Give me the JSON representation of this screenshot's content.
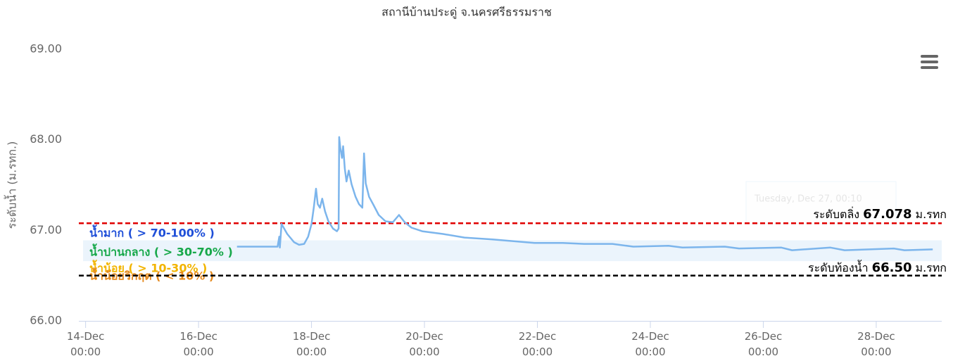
{
  "chart_data": {
    "type": "line",
    "title": "สถานีบ้านประดู่ จ.นครศรีธรรมราช",
    "y_axis_label": "ระดับน้ำ (ม.รทก.)",
    "color": "#7cb5ec",
    "x": [
      16.68,
      17.4,
      17.43,
      17.44,
      17.47,
      17.57,
      17.69,
      17.78,
      17.87,
      17.94,
      18.0,
      18.04,
      18.08,
      18.11,
      18.15,
      18.19,
      18.24,
      18.3,
      18.38,
      18.45,
      18.48,
      18.49,
      18.51,
      18.54,
      18.56,
      18.59,
      18.62,
      18.66,
      18.71,
      18.78,
      18.84,
      18.9,
      18.93,
      18.96,
      19.02,
      19.09,
      19.19,
      19.31,
      19.44,
      19.55,
      19.65,
      19.77,
      19.96,
      20.33,
      20.71,
      21.21,
      21.58,
      21.95,
      22.45,
      22.83,
      23.33,
      23.7,
      24.32,
      24.57,
      25.32,
      25.57,
      26.32,
      26.51,
      27.19,
      27.44,
      28.31,
      28.5,
      29.0
    ],
    "values": [
      66.82,
      66.82,
      66.93,
      66.81,
      67.07,
      66.96,
      66.87,
      66.84,
      66.85,
      66.93,
      67.07,
      67.25,
      67.46,
      67.29,
      67.25,
      67.35,
      67.21,
      67.1,
      67.02,
      66.99,
      67.02,
      68.03,
      67.91,
      67.8,
      67.93,
      67.68,
      67.54,
      67.66,
      67.51,
      67.37,
      67.29,
      67.25,
      67.85,
      67.52,
      67.37,
      67.29,
      67.17,
      67.1,
      67.09,
      67.17,
      67.09,
      67.03,
      66.99,
      66.96,
      66.92,
      66.9,
      66.88,
      66.86,
      66.86,
      66.85,
      66.85,
      66.82,
      66.83,
      66.81,
      66.82,
      66.8,
      66.81,
      66.78,
      66.81,
      66.78,
      66.8,
      66.78,
      66.79
    ],
    "xlim": [
      13.88,
      29.16
    ],
    "xticks": [
      {
        "value": 14,
        "label": "14-Dec 00:00"
      },
      {
        "value": 16,
        "label": "16-Dec 00:00"
      },
      {
        "value": 18,
        "label": "18-Dec 00:00"
      },
      {
        "value": 20,
        "label": "20-Dec 00:00"
      },
      {
        "value": 22,
        "label": "22-Dec 00:00"
      },
      {
        "value": 24,
        "label": "24-Dec 00:00"
      },
      {
        "value": 26,
        "label": "26-Dec 00:00"
      },
      {
        "value": 28,
        "label": "28-Dec 00:00"
      }
    ],
    "ylim": [
      66,
      69
    ],
    "yticks": [
      {
        "value": 66,
        "label": "66.00"
      },
      {
        "value": 67,
        "label": "67.00"
      },
      {
        "value": 68,
        "label": "68.00"
      },
      {
        "value": 69,
        "label": "69.00"
      }
    ],
    "plot_band": {
      "from": 66.66,
      "to": 66.89,
      "color": "#ebf4fc"
    },
    "plot_lines": [
      {
        "label": "ระดับตลิ่ง",
        "value": 67.078,
        "value_label": "67.078",
        "unit": "ม.รทก",
        "color": "#e00000"
      },
      {
        "label": "ระดับท้องน้ำ",
        "value": 66.5,
        "value_label": "66.50",
        "unit": "ม.รทก",
        "color": "#000000"
      }
    ],
    "zones": [
      {
        "label": "น้ำมาก ( > 70-100% )",
        "color": "#1f4fd8"
      },
      {
        "label": "น้ำปานกลาง ( > 30-70% )",
        "color": "#17a84a"
      },
      {
        "label": "น้ำน้อย ( > 10-30% )",
        "color": "#f2b400"
      },
      {
        "label": "น้ำน้อยวิกฤต ( < 10% )",
        "color": "#e58a1e"
      }
    ],
    "tooltip": "Tuesday, Dec 27, 00:10"
  }
}
